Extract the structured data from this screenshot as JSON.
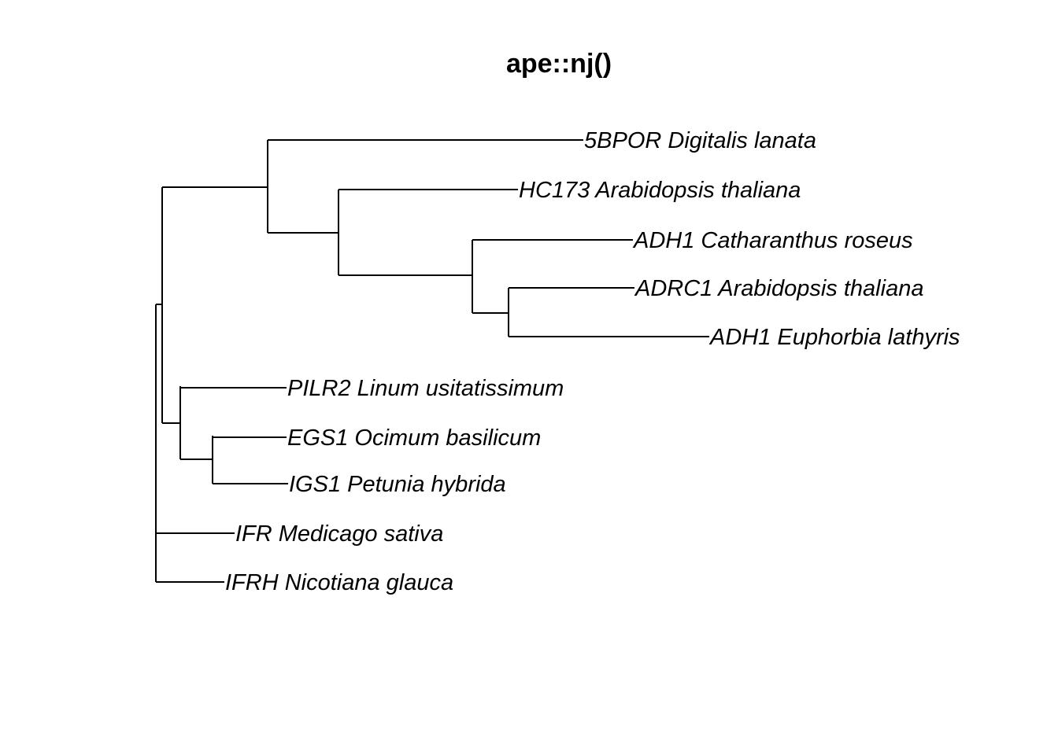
{
  "title": "ape::nj()",
  "tips": [
    {
      "id": "t1",
      "label": "5BPOR Digitalis lanata"
    },
    {
      "id": "t2",
      "label": "HC173 Arabidopsis thaliana"
    },
    {
      "id": "t3",
      "label": "ADH1 Catharanthus roseus"
    },
    {
      "id": "t4",
      "label": "ADRC1 Arabidopsis thaliana"
    },
    {
      "id": "t5",
      "label": "ADH1 Euphorbia lathyris"
    },
    {
      "id": "t6",
      "label": "PILR2 Linum usitatissimum"
    },
    {
      "id": "t7",
      "label": "EGS1 Ocimum basilicum"
    },
    {
      "id": "t8",
      "label": "IGS1 Petunia hybrida"
    },
    {
      "id": "t9",
      "label": "IFR Medicago sativa"
    },
    {
      "id": "t10",
      "label": "IFRH Nicotiana glauca"
    }
  ],
  "tree": {
    "type": "unrooted-nj-phylogram",
    "topology": "(((t1,(t2,(t3,(t4,t5)))),(t6,(t7,t8))),t9,t10)"
  }
}
